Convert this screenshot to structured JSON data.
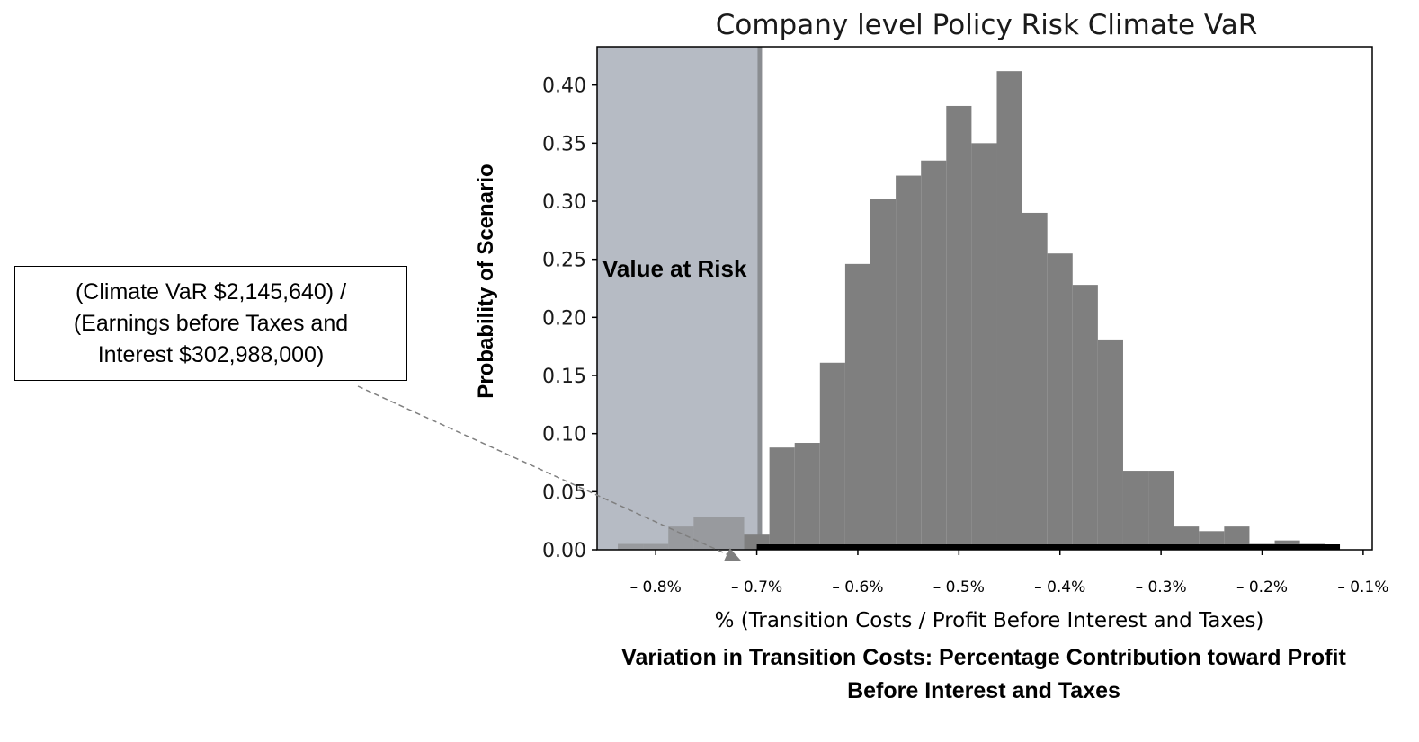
{
  "chart_data": {
    "type": "bar",
    "title": "Company level Policy Risk Climate VaR",
    "xlabel": "% (Transition Costs / Profit Before Interest and Taxes)",
    "ylabel": "Probability of Scenario",
    "caption_lines": [
      "Variation in Transition Costs: Percentage Contribution toward Profit",
      "Before Interest and Taxes"
    ],
    "xlim": [
      -0.858,
      -0.091
    ],
    "ylim": [
      0,
      0.433
    ],
    "x_ticks": [
      -0.8,
      -0.7,
      -0.6,
      -0.5,
      -0.4,
      -0.3,
      -0.2,
      -0.1
    ],
    "x_tick_labels": [
      "– 0.8%",
      "– 0.7%",
      "– 0.6%",
      "– 0.5%",
      "– 0.4%",
      "– 0.3%",
      "– 0.2%",
      "– 0.1%"
    ],
    "y_ticks": [
      0.0,
      0.05,
      0.1,
      0.15,
      0.2,
      0.25,
      0.3,
      0.35,
      0.4
    ],
    "y_tick_labels": [
      "0.00",
      "0.05",
      "0.10",
      "0.15",
      "0.20",
      "0.25",
      "0.30",
      "0.35",
      "0.40"
    ],
    "bin_width": 0.025,
    "bins": [
      {
        "x": -0.825,
        "y": 0.005
      },
      {
        "x": -0.8,
        "y": 0.005
      },
      {
        "x": -0.775,
        "y": 0.02
      },
      {
        "x": -0.75,
        "y": 0.028
      },
      {
        "x": -0.725,
        "y": 0.028
      },
      {
        "x": -0.7,
        "y": 0.013
      },
      {
        "x": -0.675,
        "y": 0.088
      },
      {
        "x": -0.65,
        "y": 0.092
      },
      {
        "x": -0.625,
        "y": 0.161
      },
      {
        "x": -0.6,
        "y": 0.246
      },
      {
        "x": -0.575,
        "y": 0.302
      },
      {
        "x": -0.55,
        "y": 0.322
      },
      {
        "x": -0.525,
        "y": 0.335
      },
      {
        "x": -0.5,
        "y": 0.382
      },
      {
        "x": -0.475,
        "y": 0.35
      },
      {
        "x": -0.45,
        "y": 0.412
      },
      {
        "x": -0.425,
        "y": 0.29
      },
      {
        "x": -0.4,
        "y": 0.255
      },
      {
        "x": -0.375,
        "y": 0.228
      },
      {
        "x": -0.35,
        "y": 0.181
      },
      {
        "x": -0.325,
        "y": 0.068
      },
      {
        "x": -0.3,
        "y": 0.068
      },
      {
        "x": -0.275,
        "y": 0.02
      },
      {
        "x": -0.25,
        "y": 0.016
      },
      {
        "x": -0.225,
        "y": 0.02
      },
      {
        "x": -0.2,
        "y": 0.005
      },
      {
        "x": -0.175,
        "y": 0.008
      },
      {
        "x": -0.15,
        "y": 0.005
      }
    ],
    "var_threshold": -0.697,
    "var_region_label": "Value at Risk",
    "rug_x_range": [
      -0.7,
      -0.123
    ],
    "colors": {
      "bar": "#7f7f7f",
      "var_region": "#b6bbc4",
      "var_line": "#8a8d91",
      "rug": "#000000",
      "arrow": "#7f7f7f"
    },
    "grid": false
  },
  "annotation": {
    "lines": [
      "(Climate VaR $2,145,640) /",
      "(Earnings before Taxes and",
      "Interest $302,988,000)"
    ],
    "arrow_target": {
      "x": -0.715,
      "y": -0.01
    }
  }
}
